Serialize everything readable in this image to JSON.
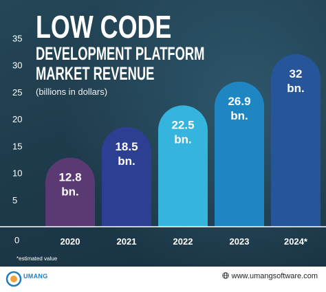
{
  "title": {
    "line1": "LOW CODE",
    "line2": "DEVELOPMENT PLATFORM",
    "line3": "MARKET REVENUE",
    "subtitle": "(billions in dollars)"
  },
  "footnote": "*estimated value",
  "footer": {
    "logo_text": "UMANG",
    "website": "www.umangsoftware.com"
  },
  "colors": {
    "background": "#1e3a4c",
    "bars": [
      "#5b3a74",
      "#2d3f93",
      "#35b5dd",
      "#1e86c2",
      "#27559a"
    ],
    "text": "#ffffff",
    "footer_bg": "#ffffff"
  },
  "chart_data": {
    "type": "bar",
    "categories": [
      "2020",
      "2021",
      "2022",
      "2023",
      "2024*"
    ],
    "values": [
      12.8,
      18.5,
      22.5,
      26.9,
      32
    ],
    "data_labels": [
      [
        "12.8",
        "bn."
      ],
      [
        "18.5",
        "bn."
      ],
      [
        "22.5",
        "bn."
      ],
      [
        "26.9",
        "bn."
      ],
      [
        "32",
        "bn."
      ]
    ],
    "title": "LOW CODE DEVELOPMENT PLATFORM MARKET REVENUE",
    "ylabel": "(billions in dollars)",
    "ylim": [
      0,
      35
    ],
    "yticks": [
      5,
      10,
      15,
      20,
      25,
      30,
      35
    ],
    "zero_label": "0",
    "grid": false
  }
}
